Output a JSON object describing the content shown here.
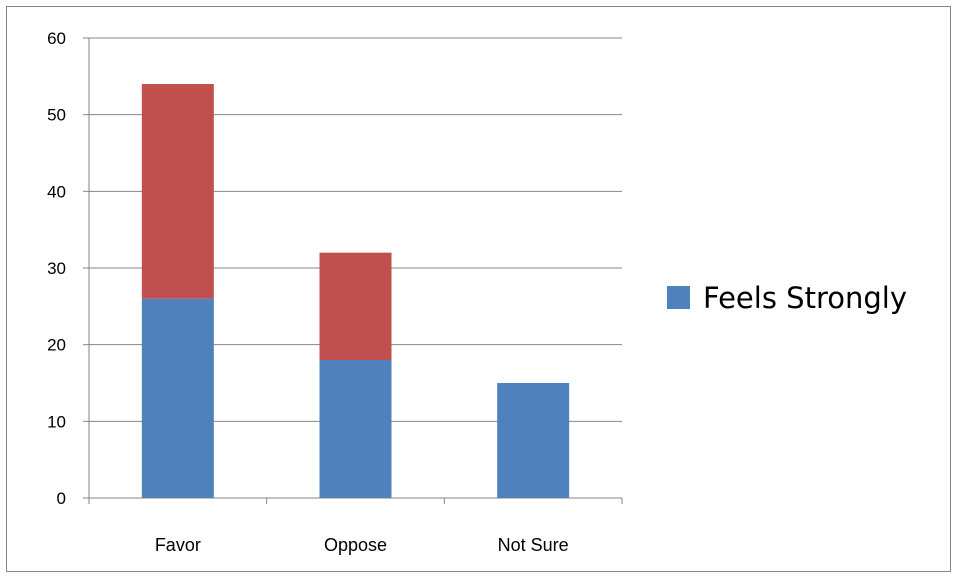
{
  "chart_data": {
    "type": "bar",
    "stacked": true,
    "title": "",
    "xlabel": "",
    "ylabel": "",
    "categories": [
      "Favor",
      "Oppose",
      "Not Sure"
    ],
    "series": [
      {
        "name": "Feels Strongly",
        "values": [
          26,
          18,
          15
        ],
        "color": "#4F81BD"
      },
      {
        "values": [
          28,
          14,
          0
        ],
        "color": "#C0504D"
      }
    ],
    "ylim": [
      0,
      60
    ],
    "yticks": [
      0,
      10,
      20,
      30,
      40,
      50,
      60
    ],
    "grid": true,
    "legend": {
      "position": "right",
      "entries": [
        "Feels Strongly"
      ]
    }
  }
}
